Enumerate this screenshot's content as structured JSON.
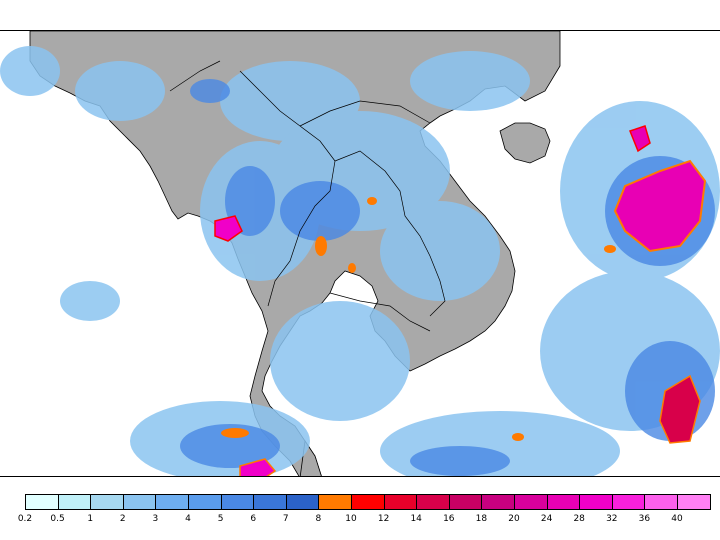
{
  "colors": {
    "land": "#a9a9a9",
    "ocean": "#ffffff",
    "coast": "#000000"
  },
  "legend": {
    "levels": [
      "0.2",
      "0.5",
      "1",
      "2",
      "3",
      "4",
      "5",
      "6",
      "7",
      "8",
      "10",
      "12",
      "14",
      "16",
      "18",
      "20",
      "24",
      "28",
      "32",
      "36",
      "40"
    ],
    "colors": [
      "#e1ffff",
      "#c0f0f8",
      "#a6d8f0",
      "#8bc4f0",
      "#6eaef0",
      "#5a9cec",
      "#4a88e4",
      "#3a76d8",
      "#2b62c8",
      "#ff7a00",
      "#ff0000",
      "#e8002a",
      "#d8004a",
      "#c80064",
      "#c80080",
      "#d8009c",
      "#e800b4",
      "#f000c8",
      "#f820dc",
      "#fc60ec",
      "#ff80f4"
    ]
  }
}
